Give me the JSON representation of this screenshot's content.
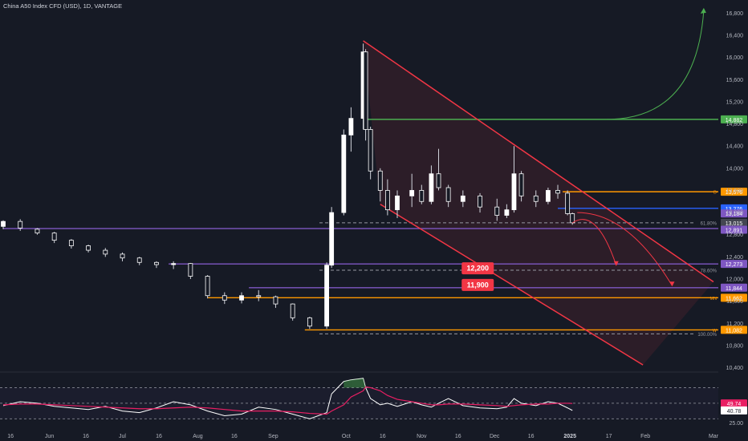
{
  "header": {
    "title": "China A50 Index CFD (USD), 1D, VANTAGE"
  },
  "colors": {
    "background": "#161a25",
    "text": "#b2b5be",
    "axis_text": "#b2b5be",
    "up_candle": "#ffffff",
    "down_candle": "#ffffff",
    "wick": "#d1d4dc",
    "channel": "#f23645",
    "green_level": "#4caf50",
    "orange_level": "#ff9800",
    "purple_level": "#7e57c2",
    "blue_level": "#2962ff",
    "fib_dash": "#9598a1",
    "rsi_line": "#ffffff",
    "rsi_ma": "#e91e63",
    "rsi_band": "#787b86",
    "badge_red": "#f23645",
    "badge_green": "#4caf50"
  },
  "chart_data": [
    {
      "type": "candlestick",
      "title": "China A50 Index CFD (USD), 1D, VANTAGE",
      "x_ticks": [
        "16",
        "Jun",
        "16",
        "Jul",
        "16",
        "Aug",
        "16",
        "Sep",
        "Oct",
        "16",
        "Nov",
        "16",
        "Dec",
        "16",
        "2025",
        "17",
        "Feb",
        "Mar"
      ],
      "y_ticks": [
        10400,
        10800,
        11200,
        11600,
        12000,
        12400,
        12800,
        13200,
        13600,
        14000,
        14400,
        14800,
        15200,
        15600,
        16000,
        16400,
        16800
      ],
      "ylim": [
        10350,
        16950
      ],
      "ohlc_daily_approx": [
        [
          "May 13",
          12950,
          13060,
          12900,
          13040
        ],
        [
          "May 20",
          13040,
          13080,
          12870,
          12920
        ],
        [
          "May 27",
          12900,
          12920,
          12800,
          12830
        ],
        [
          "Jun 03",
          12830,
          12850,
          12650,
          12700
        ],
        [
          "Jun 10",
          12700,
          12720,
          12550,
          12600
        ],
        [
          "Jun 17",
          12600,
          12620,
          12480,
          12520
        ],
        [
          "Jun 24",
          12520,
          12560,
          12400,
          12450
        ],
        [
          "Jul 01",
          12450,
          12480,
          12320,
          12380
        ],
        [
          "Jul 08",
          12380,
          12400,
          12250,
          12300
        ],
        [
          "Jul 15",
          12300,
          12320,
          12200,
          12260
        ],
        [
          "Jul 22",
          12260,
          12320,
          12180,
          12280
        ],
        [
          "Jul 29",
          12280,
          12290,
          12000,
          12050
        ],
        [
          "Aug 05",
          12050,
          12070,
          11650,
          11700
        ],
        [
          "Aug 12",
          11700,
          11760,
          11550,
          11620
        ],
        [
          "Aug 19",
          11620,
          11760,
          11560,
          11700
        ],
        [
          "Aug 26",
          11700,
          11800,
          11600,
          11680
        ],
        [
          "Sep 02",
          11680,
          11700,
          11480,
          11550
        ],
        [
          "Sep 09",
          11550,
          11560,
          11250,
          11300
        ],
        [
          "Sep 16",
          11300,
          11320,
          11100,
          11150
        ],
        [
          "Sep 23",
          11150,
          12300,
          11100,
          12250
        ],
        [
          "Sep 25",
          12250,
          13300,
          12200,
          13200
        ],
        [
          "Sep 30",
          13200,
          14700,
          13150,
          14600
        ],
        [
          "Oct 03",
          14600,
          15100,
          14300,
          14900
        ],
        [
          "Oct 08",
          14900,
          16250,
          14700,
          16100
        ],
        [
          "Oct 09",
          16100,
          16150,
          14500,
          14700
        ],
        [
          "Oct 11",
          14700,
          14750,
          13800,
          13950
        ],
        [
          "Oct 15",
          13950,
          14000,
          13400,
          13600
        ],
        [
          "Oct 18",
          13600,
          13800,
          13150,
          13250
        ],
        [
          "Oct 22",
          13250,
          13600,
          13100,
          13500
        ],
        [
          "Oct 28",
          13500,
          13900,
          13300,
          13600
        ],
        [
          "Nov 01",
          13600,
          13700,
          13350,
          13400
        ],
        [
          "Nov 05",
          13400,
          14050,
          13350,
          13900
        ],
        [
          "Nov 08",
          13900,
          14350,
          13600,
          13650
        ],
        [
          "Nov 12",
          13650,
          13700,
          13300,
          13400
        ],
        [
          "Nov 18",
          13400,
          13600,
          13300,
          13500
        ],
        [
          "Nov 25",
          13500,
          13550,
          13200,
          13300
        ],
        [
          "Dec 02",
          13300,
          13450,
          13050,
          13150
        ],
        [
          "Dec 06",
          13150,
          13350,
          13100,
          13250
        ],
        [
          "Dec 09",
          13250,
          14400,
          13200,
          13900
        ],
        [
          "Dec 12",
          13900,
          13950,
          13400,
          13500
        ],
        [
          "Dec 18",
          13500,
          13600,
          13300,
          13400
        ],
        [
          "Dec 23",
          13400,
          13650,
          13350,
          13600
        ],
        [
          "Dec 27",
          13600,
          13700,
          13450,
          13550
        ],
        [
          "Dec 31",
          13550,
          13600,
          13150,
          13180
        ],
        [
          "Jan 02",
          13180,
          13200,
          12980,
          13015
        ]
      ],
      "channel_upper": [
        [
          "Oct 08",
          16300
        ],
        [
          "Mar 01",
          11950
        ]
      ],
      "channel_lower": [
        [
          "Oct 15",
          13350
        ],
        [
          "Jan 31",
          10450
        ]
      ],
      "horizontal_levels": [
        {
          "value": 14882,
          "label": "14,882",
          "color": "#4caf50",
          "tag": ""
        },
        {
          "value": 13576,
          "label": "13,576",
          "color": "#ff9800",
          "tag": "D"
        },
        {
          "value": 13276,
          "label": "13,276",
          "color": "#2962ff",
          "tag": ""
        },
        {
          "value": 12911,
          "label": "12,911",
          "color": "#7e57c2",
          "tag": ""
        },
        {
          "value": 12273,
          "label": "12,273",
          "color": "#7e57c2",
          "tag": ""
        },
        {
          "value": 11844,
          "label": "11,844",
          "color": "#7e57c2",
          "tag": ""
        },
        {
          "value": 11662,
          "label": "11,662",
          "color": "#ff9800",
          "tag": "MN"
        },
        {
          "value": 11082,
          "label": "11,082",
          "color": "#ff9800",
          "tag": "W"
        }
      ],
      "price_tags": [
        {
          "value": 13184,
          "label": "13,184",
          "color": "#7e57c2"
        },
        {
          "value": 13015,
          "label": "13,015",
          "color": "#434651"
        },
        {
          "value": 12891,
          "label": "12,891",
          "color": "#7e57c2"
        }
      ],
      "fib_levels": [
        {
          "value": 13015,
          "label": "61.80%"
        },
        {
          "value": 12160,
          "label": "78.60%"
        },
        {
          "value": 11010,
          "label": "100.00%"
        }
      ],
      "annotations": [
        {
          "text": "12,200",
          "value": 12200
        },
        {
          "text": "11,900",
          "value": 11900
        }
      ]
    },
    {
      "type": "line",
      "title": "",
      "y_ticks": [
        25.0
      ],
      "ylim": [
        18,
        88
      ],
      "bands": [
        70,
        50,
        30
      ],
      "latest": {
        "rsi": 40.78,
        "ma": 49.74
      },
      "series": [
        {
          "values": [
            47,
            52,
            50,
            46,
            44,
            42,
            46,
            40,
            38,
            44,
            52,
            48,
            40,
            34,
            36,
            45,
            42,
            36,
            30,
            38,
            62,
            78,
            80,
            82,
            70,
            56,
            48,
            50,
            46,
            52,
            48,
            45,
            50,
            56,
            47,
            44,
            43,
            45,
            56,
            50,
            47,
            52,
            50,
            44,
            40.78
          ]
        },
        {
          "values": [
            48,
            49,
            49,
            48,
            47,
            46,
            45,
            44,
            43,
            43,
            44,
            45,
            44,
            42,
            40,
            40,
            40,
            39,
            37,
            36,
            40,
            48,
            58,
            66,
            71,
            70,
            66,
            60,
            55,
            52,
            50,
            48,
            48,
            49,
            49,
            48,
            47,
            46,
            47,
            48,
            49,
            49,
            50,
            50,
            49.74
          ]
        }
      ]
    }
  ]
}
